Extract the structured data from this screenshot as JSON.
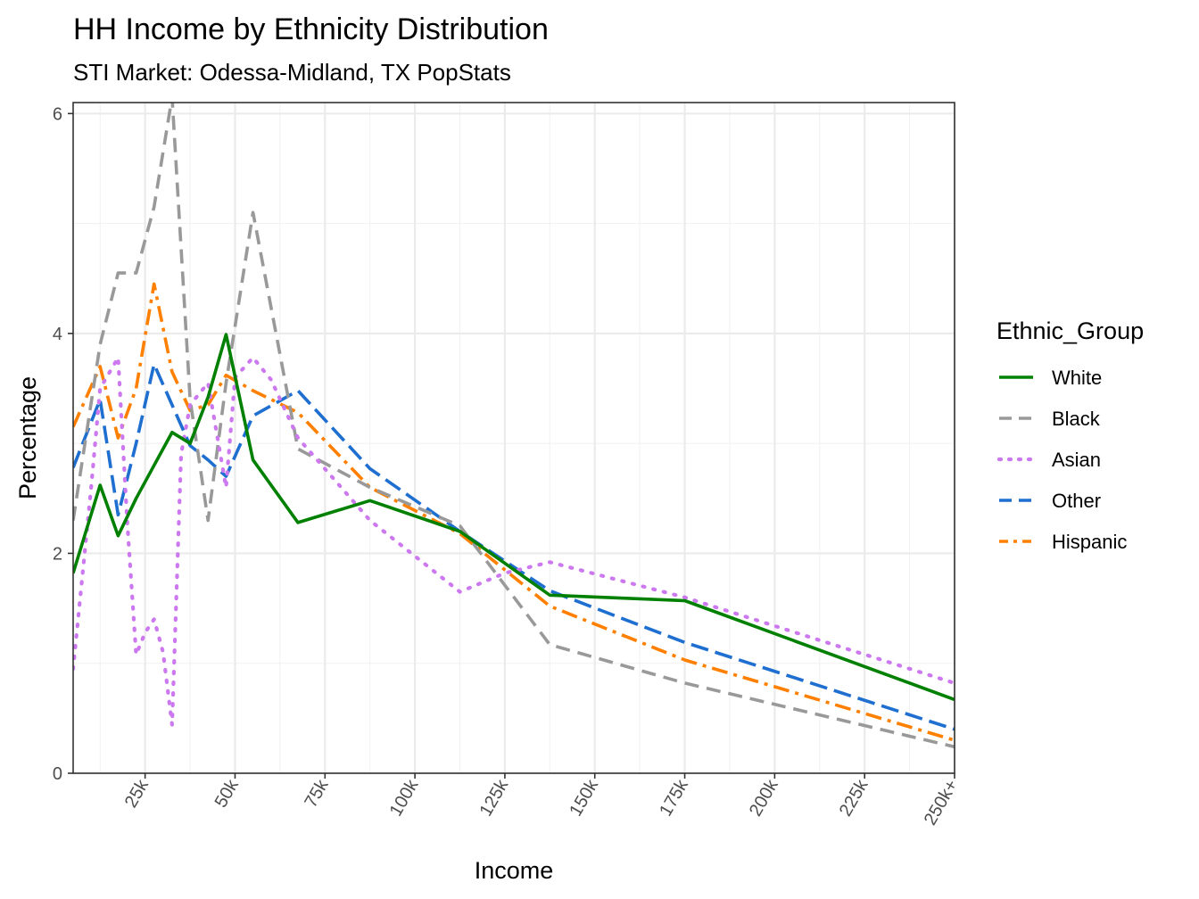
{
  "chart_data": {
    "type": "line",
    "title": "HH Income by Ethnicity Distribution",
    "subtitle": "STI Market: Odessa-Midland, TX PopStats",
    "xlabel": "Income",
    "ylabel": "Percentage",
    "xlim": [
      5,
      250
    ],
    "ylim": [
      0,
      6.1
    ],
    "x_ticks": [
      25,
      50,
      75,
      100,
      125,
      150,
      175,
      200,
      225,
      250
    ],
    "x_tick_labels": [
      "25k",
      "50k",
      "75k",
      "100k",
      "125k",
      "150k",
      "175k",
      "200k",
      "225k",
      "250k+"
    ],
    "y_ticks": [
      0,
      2,
      4,
      6
    ],
    "y_tick_labels": [
      "0",
      "2",
      "4",
      "6"
    ],
    "grid": true,
    "legend_position": "right",
    "legend_title": "Ethnic_Group",
    "series": [
      {
        "name": "White",
        "color": "#008000",
        "dash": "solid",
        "x": [
          5,
          12.5,
          17.5,
          22.5,
          27.5,
          32.5,
          37.5,
          42.5,
          47.5,
          55,
          67.5,
          87.5,
          112.5,
          137.5,
          175,
          250
        ],
        "values": [
          1.82,
          2.62,
          2.16,
          2.5,
          2.8,
          3.1,
          3.0,
          3.42,
          3.99,
          2.85,
          2.28,
          2.48,
          2.2,
          1.62,
          1.57,
          0.67
        ]
      },
      {
        "name": "Black",
        "color": "#999999",
        "dash": "dashed",
        "x": [
          5,
          12.5,
          17.5,
          22.5,
          27.5,
          32.5,
          37.5,
          42.5,
          47.5,
          55,
          67.5,
          87.5,
          112.5,
          137.5,
          175,
          250
        ],
        "values": [
          2.3,
          3.9,
          4.55,
          4.55,
          5.15,
          6.15,
          3.4,
          2.3,
          3.55,
          5.1,
          2.95,
          2.6,
          2.25,
          1.17,
          0.82,
          0.24
        ]
      },
      {
        "name": "Asian",
        "color": "#cc79ef",
        "dash": "dotted",
        "x": [
          5,
          10,
          12.5,
          17.5,
          20,
          22.5,
          25,
          27.5,
          30,
          32.5,
          35,
          37.5,
          42.5,
          47.5,
          50,
          55,
          60,
          67.5,
          87.5,
          112.5,
          125,
          137.5,
          175,
          250
        ],
        "values": [
          0.95,
          2.6,
          3.5,
          3.78,
          2.3,
          1.08,
          1.28,
          1.4,
          1.1,
          0.44,
          2.9,
          3.35,
          3.55,
          2.6,
          3.6,
          3.78,
          3.58,
          3.05,
          2.3,
          1.65,
          1.82,
          1.92,
          1.6,
          0.82
        ]
      },
      {
        "name": "Other",
        "color": "#1f6fd1",
        "dash": "longdash",
        "x": [
          5,
          12.5,
          17.5,
          22.5,
          27.5,
          32.5,
          37.5,
          42.5,
          47.5,
          55,
          67.5,
          87.5,
          112.5,
          137.5,
          175,
          250
        ],
        "values": [
          2.78,
          3.4,
          2.35,
          3.0,
          3.72,
          3.35,
          2.98,
          2.85,
          2.7,
          3.25,
          3.48,
          2.77,
          2.2,
          1.66,
          1.19,
          0.4
        ]
      },
      {
        "name": "Hispanic",
        "color": "#ff8000",
        "dash": "dotdash",
        "x": [
          5,
          12.5,
          17.5,
          22.5,
          27.5,
          32.5,
          37.5,
          42.5,
          47.5,
          55,
          67.5,
          87.5,
          112.5,
          137.5,
          175,
          250
        ],
        "values": [
          3.15,
          3.7,
          3.05,
          3.5,
          4.45,
          3.65,
          3.3,
          3.35,
          3.62,
          3.48,
          3.28,
          2.6,
          2.18,
          1.52,
          1.03,
          0.3
        ]
      }
    ]
  }
}
